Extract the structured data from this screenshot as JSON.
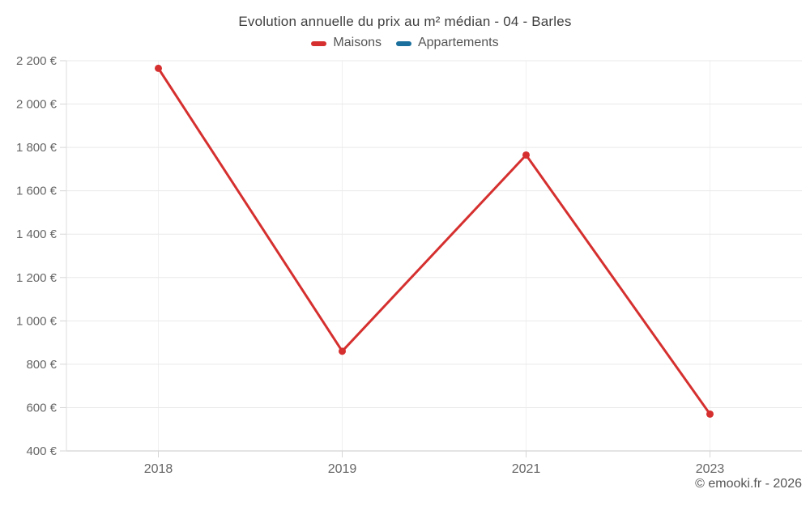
{
  "title": "Evolution annuelle du prix au m² médian - 04 - Barles",
  "legend": {
    "items": [
      {
        "label": "Maisons",
        "color": "#d5302f"
      },
      {
        "label": "Appartements",
        "color": "#1a6f9c"
      }
    ]
  },
  "footer": {
    "credit": "© emooki.fr - 2026"
  },
  "chart_data": {
    "type": "line",
    "title": "Evolution annuelle du prix au m² médian - 04 - Barles",
    "categories": [
      "2018",
      "2019",
      "2021",
      "2023"
    ],
    "series": [
      {
        "name": "Maisons",
        "color": "#d5302f",
        "values": [
          2165,
          860,
          1765,
          570
        ]
      },
      {
        "name": "Appartements",
        "color": "#1a6f9c",
        "values": []
      }
    ],
    "xlabel": "",
    "ylabel": "",
    "ylim": [
      400,
      2200
    ],
    "ytick_step": 200,
    "ytick_format": "{value} €",
    "grid": true,
    "legend_position": "top",
    "line_width": 3,
    "point_radius": 4.5,
    "axis_text_color": "#666666",
    "grid_color": "#e9e9e9"
  }
}
